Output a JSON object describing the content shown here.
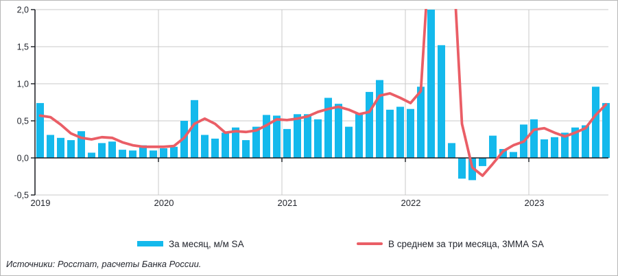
{
  "legend": {
    "bars_label": "За месяц, м/м SA",
    "line_label": "В среднем за три месяца, 3ММА SA"
  },
  "source_note": "Источники: Росстат, расчеты Банка России.",
  "colors": {
    "bar": "#14b9ec",
    "line": "#ea5e66",
    "grid": "#c8c8c8",
    "axis": "#16191f",
    "text": "#23262e"
  },
  "chart_data": {
    "type": "bar",
    "title": "",
    "xlabel": "",
    "ylabel": "",
    "ylim": [
      -0.5,
      2.0
    ],
    "grid": true,
    "legend_position": "bottom",
    "yticks": [
      {
        "label": "2,0",
        "value": 2.0
      },
      {
        "label": "1,5",
        "value": 1.5
      },
      {
        "label": "1,0",
        "value": 1.0
      },
      {
        "label": "0,5",
        "value": 0.5
      },
      {
        "label": "0,0",
        "value": 0.0
      },
      {
        "label": "-0,5",
        "value": -0.5
      }
    ],
    "xticks": [
      "2019",
      "2020",
      "2021",
      "2022",
      "2023"
    ],
    "x": [
      "2019-01",
      "2019-02",
      "2019-03",
      "2019-04",
      "2019-05",
      "2019-06",
      "2019-07",
      "2019-08",
      "2019-09",
      "2019-10",
      "2019-11",
      "2019-12",
      "2020-01",
      "2020-02",
      "2020-03",
      "2020-04",
      "2020-05",
      "2020-06",
      "2020-07",
      "2020-08",
      "2020-09",
      "2020-10",
      "2020-11",
      "2020-12",
      "2021-01",
      "2021-02",
      "2021-03",
      "2021-04",
      "2021-05",
      "2021-06",
      "2021-07",
      "2021-08",
      "2021-09",
      "2021-10",
      "2021-11",
      "2021-12",
      "2022-01",
      "2022-02",
      "2022-03",
      "2022-04",
      "2022-05",
      "2022-06",
      "2022-07",
      "2022-08",
      "2022-09",
      "2022-10",
      "2022-11",
      "2022-12",
      "2023-01",
      "2023-02",
      "2023-03",
      "2023-04",
      "2023-05",
      "2023-06",
      "2023-07",
      "2023-08"
    ],
    "series": [
      {
        "name": "За месяц, м/м SA",
        "type": "bar",
        "values": [
          0.74,
          0.31,
          0.27,
          0.24,
          0.36,
          0.07,
          0.2,
          0.22,
          0.11,
          0.1,
          0.17,
          0.1,
          0.13,
          0.15,
          0.5,
          0.78,
          0.31,
          0.26,
          0.34,
          0.41,
          0.24,
          0.42,
          0.58,
          0.57,
          0.39,
          0.59,
          0.59,
          0.52,
          0.81,
          0.73,
          0.42,
          0.6,
          0.89,
          1.05,
          0.65,
          0.69,
          0.66,
          0.96,
          2.0,
          1.52,
          0.2,
          -0.28,
          -0.3,
          -0.11,
          0.3,
          0.12,
          0.08,
          0.45,
          0.52,
          0.25,
          0.28,
          0.34,
          0.41,
          0.44,
          0.96,
          0.74
        ]
      },
      {
        "name": "В среднем за три месяца, 3ММА SA",
        "type": "line",
        "values": [
          0.57,
          0.55,
          0.45,
          0.33,
          0.27,
          0.25,
          0.28,
          0.27,
          0.21,
          0.17,
          0.15,
          0.15,
          0.15,
          0.16,
          0.27,
          0.46,
          0.53,
          0.46,
          0.34,
          0.36,
          0.35,
          0.37,
          0.44,
          0.52,
          0.51,
          0.53,
          0.56,
          0.62,
          0.66,
          0.69,
          0.65,
          0.59,
          0.62,
          0.84,
          0.87,
          0.81,
          0.74,
          0.9,
          3.1,
          3.4,
          3.05,
          0.46,
          -0.13,
          -0.24,
          -0.08,
          0.09,
          0.17,
          0.22,
          0.38,
          0.4,
          0.34,
          0.29,
          0.34,
          0.4,
          0.58,
          0.72
        ]
      }
    ],
    "notes": {
      "bar_clipped_at_plot_top": [
        "2022-03"
      ],
      "line_above_plot_range": [
        "2022-03",
        "2022-04",
        "2022-05"
      ]
    }
  }
}
